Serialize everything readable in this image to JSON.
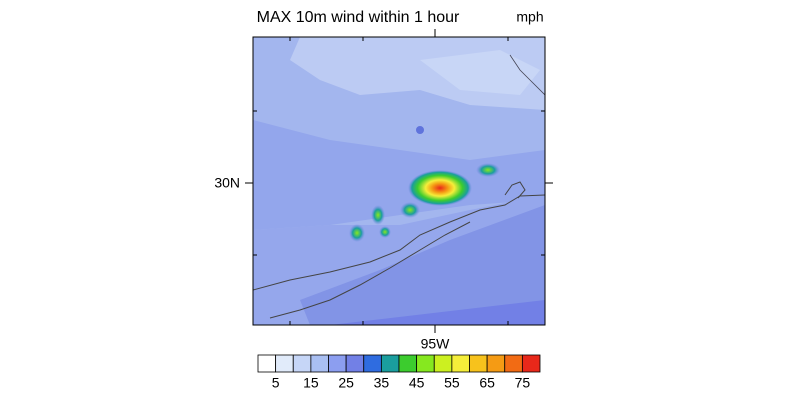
{
  "title": "MAX 10m wind within 1 hour",
  "units": "mph",
  "lat_label": "30N",
  "lon_label": "95W",
  "colorbar": {
    "labels": [
      "5",
      "15",
      "25",
      "35",
      "45",
      "55",
      "65",
      "75"
    ],
    "colors": [
      "#ffffff",
      "#e1ebfa",
      "#c6d6f7",
      "#a9bff2",
      "#8c9ef0",
      "#7280e6",
      "#2f6ce0",
      "#1a9e9e",
      "#3ccc2e",
      "#86e81f",
      "#ccf020",
      "#f5ee3a",
      "#f7c21c",
      "#f59b14",
      "#f26b14",
      "#e8281a"
    ]
  }
}
